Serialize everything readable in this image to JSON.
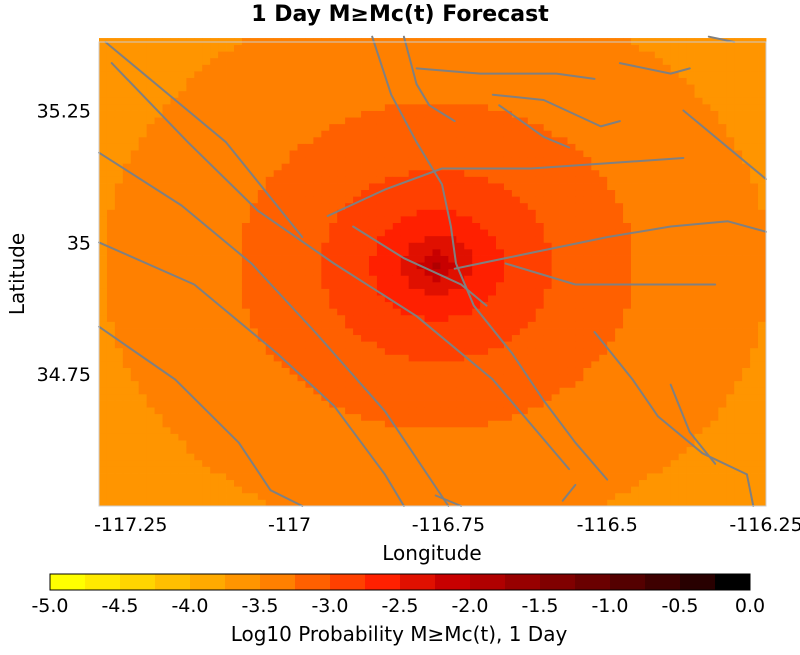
{
  "chart_data": {
    "type": "heatmap",
    "title": "1 Day M≥Mc(t) Forecast",
    "xlabel": "Longitude",
    "ylabel": "Latitude",
    "xlim": [
      -117.3,
      -116.25
    ],
    "ylim": [
      34.5,
      35.38
    ],
    "x_ticks": [
      -117.25,
      -117,
      -116.75,
      -116.5,
      -116.25
    ],
    "x_tick_labels": [
      "-117.25",
      "-117",
      "-116.75",
      "-116.5",
      "-116.25"
    ],
    "y_ticks": [
      34.75,
      35,
      35.25
    ],
    "y_tick_labels": [
      "34.75",
      "35",
      "35.25"
    ],
    "grid": true,
    "cell_size_deg": 0.0125,
    "epicenter": [
      -116.768,
      34.957
    ],
    "peak_log10_probability": -1.8,
    "colorbar": {
      "label": "Log10 Probability M≥Mc(t), 1 Day",
      "min": -5.0,
      "max": 0.0,
      "tick_values": [
        -5.0,
        -4.5,
        -4.0,
        -3.5,
        -3.0,
        -2.5,
        -2.0,
        -1.5,
        -1.0,
        -0.5,
        0.0
      ],
      "tick_labels": [
        "-5.0",
        "-4.5",
        "-4.0",
        "-3.5",
        "-3.0",
        "-2.5",
        "-2.0",
        "-1.5",
        "-1.0",
        "-0.5",
        "0.0"
      ],
      "colors": [
        "#ffff00",
        "#ffea00",
        "#ffd500",
        "#ffbf00",
        "#ffaa00",
        "#ff9500",
        "#ff8000",
        "#ff6000",
        "#ff4000",
        "#ff2000",
        "#e01000",
        "#c80000",
        "#b00000",
        "#980000",
        "#800000",
        "#6a0000",
        "#540000",
        "#3e0000",
        "#280000",
        "#000000"
      ]
    },
    "fault_color": "#808080",
    "faults": [
      [
        [
          -117.28,
          35.34
        ],
        [
          -117.16,
          35.19
        ],
        [
          -117.05,
          35.06
        ],
        [
          -116.93,
          34.96
        ],
        [
          -116.8,
          34.86
        ],
        [
          -116.68,
          34.74
        ],
        [
          -116.56,
          34.57
        ]
      ],
      [
        [
          -117.3,
          35.17
        ],
        [
          -117.17,
          35.07
        ],
        [
          -117.06,
          34.96
        ],
        [
          -116.96,
          34.83
        ],
        [
          -116.85,
          34.68
        ],
        [
          -116.75,
          34.5
        ]
      ],
      [
        [
          -117.3,
          35.0
        ],
        [
          -117.15,
          34.92
        ],
        [
          -117.02,
          34.79
        ],
        [
          -116.93,
          34.69
        ],
        [
          -116.85,
          34.56
        ],
        [
          -116.82,
          34.5
        ]
      ],
      [
        [
          -117.3,
          34.84
        ],
        [
          -117.18,
          34.74
        ],
        [
          -117.08,
          34.62
        ],
        [
          -117.03,
          34.53
        ],
        [
          -116.98,
          34.5
        ]
      ],
      [
        [
          -117.29,
          35.38
        ],
        [
          -117.1,
          35.19
        ],
        [
          -116.98,
          35.01
        ]
      ],
      [
        [
          -116.87,
          35.39
        ],
        [
          -116.84,
          35.28
        ],
        [
          -116.8,
          35.19
        ],
        [
          -116.76,
          35.11
        ],
        [
          -116.746,
          35.03
        ],
        [
          -116.738,
          34.96
        ],
        [
          -116.71,
          34.88
        ],
        [
          -116.65,
          34.79
        ],
        [
          -116.6,
          34.7
        ],
        [
          -116.55,
          34.62
        ],
        [
          -116.5,
          34.55
        ]
      ],
      [
        [
          -116.9,
          35.03
        ],
        [
          -116.82,
          34.97
        ],
        [
          -116.73,
          34.92
        ],
        [
          -116.69,
          34.88
        ]
      ],
      [
        [
          -116.94,
          35.05
        ],
        [
          -116.85,
          35.1
        ],
        [
          -116.76,
          35.14
        ],
        [
          -116.62,
          35.14
        ],
        [
          -116.5,
          35.15
        ],
        [
          -116.38,
          35.16
        ]
      ],
      [
        [
          -116.74,
          34.95
        ],
        [
          -116.62,
          34.98
        ],
        [
          -116.5,
          35.01
        ],
        [
          -116.4,
          35.03
        ],
        [
          -116.31,
          35.04
        ],
        [
          -116.25,
          35.02
        ]
      ],
      [
        [
          -116.66,
          34.96
        ],
        [
          -116.55,
          34.92
        ],
        [
          -116.45,
          34.92
        ],
        [
          -116.33,
          34.92
        ]
      ],
      [
        [
          -116.82,
          35.39
        ],
        [
          -116.8,
          35.3
        ],
        [
          -116.78,
          35.26
        ],
        [
          -116.74,
          35.23
        ]
      ],
      [
        [
          -116.8,
          35.33
        ],
        [
          -116.7,
          35.32
        ],
        [
          -116.58,
          35.32
        ],
        [
          -116.52,
          35.31
        ]
      ],
      [
        [
          -116.68,
          35.28
        ],
        [
          -116.6,
          35.27
        ],
        [
          -116.51,
          35.22
        ],
        [
          -116.48,
          35.23
        ]
      ],
      [
        [
          -116.67,
          35.26
        ],
        [
          -116.6,
          35.2
        ],
        [
          -116.56,
          35.18
        ]
      ],
      [
        [
          -116.48,
          35.34
        ],
        [
          -116.4,
          35.32
        ],
        [
          -116.37,
          35.33
        ]
      ],
      [
        [
          -116.3,
          35.38
        ],
        [
          -116.34,
          35.39
        ]
      ],
      [
        [
          -116.38,
          35.25
        ],
        [
          -116.3,
          35.17
        ],
        [
          -116.25,
          35.12
        ]
      ],
      [
        [
          -116.52,
          34.83
        ],
        [
          -116.46,
          34.74
        ],
        [
          -116.42,
          34.67
        ],
        [
          -116.35,
          34.6
        ],
        [
          -116.28,
          34.56
        ]
      ],
      [
        [
          -116.4,
          34.73
        ],
        [
          -116.37,
          34.64
        ],
        [
          -116.33,
          34.58
        ]
      ],
      [
        [
          -116.27,
          34.5
        ],
        [
          -116.28,
          34.56
        ]
      ],
      [
        [
          -116.57,
          34.51
        ],
        [
          -116.55,
          34.54
        ]
      ],
      [
        [
          -116.77,
          34.52
        ],
        [
          -116.73,
          34.5
        ]
      ]
    ]
  }
}
